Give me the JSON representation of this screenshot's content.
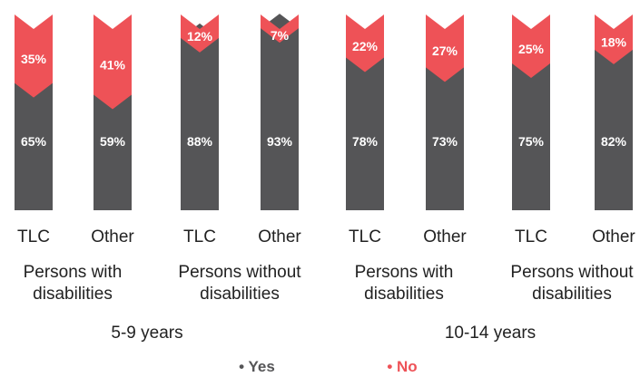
{
  "chart_data": {
    "type": "bar",
    "stacked": true,
    "age_groups": [
      {
        "label": "5-9 years",
        "groups": [
          {
            "label": [
              "Persons with",
              "disabilities"
            ],
            "bars": [
              {
                "category": "TLC",
                "yes": 65,
                "no": 35,
                "yes_label": "65%",
                "no_label": "35%"
              },
              {
                "category": "Other",
                "yes": 59,
                "no": 41,
                "yes_label": "59%",
                "no_label": "41%"
              }
            ]
          },
          {
            "label": [
              "Persons without",
              "disabilities"
            ],
            "bars": [
              {
                "category": "TLC",
                "yes": 88,
                "no": 12,
                "yes_label": "88%",
                "no_label": "12%"
              },
              {
                "category": "Other",
                "yes": 93,
                "no": 7,
                "yes_label": "93%",
                "no_label": "7%"
              }
            ]
          }
        ]
      },
      {
        "label": "10-14 years",
        "groups": [
          {
            "label": [
              "Persons with",
              "disabilities"
            ],
            "bars": [
              {
                "category": "TLC",
                "yes": 78,
                "no": 22,
                "yes_label": "78%",
                "no_label": "22%"
              },
              {
                "category": "Other",
                "yes": 73,
                "no": 27,
                "yes_label": "73%",
                "no_label": "27%"
              }
            ]
          },
          {
            "label": [
              "Persons without",
              "disabilities"
            ],
            "bars": [
              {
                "category": "TLC",
                "yes": 75,
                "no": 25,
                "yes_label": "75%",
                "no_label": "25%"
              },
              {
                "category": "Other",
                "yes": 82,
                "no": 18,
                "yes_label": "82%",
                "no_label": "18%"
              }
            ]
          }
        ]
      }
    ],
    "legend": [
      {
        "label": "• Yes",
        "color": "#555557"
      },
      {
        "label": "• No",
        "color": "#ee5257"
      }
    ]
  }
}
